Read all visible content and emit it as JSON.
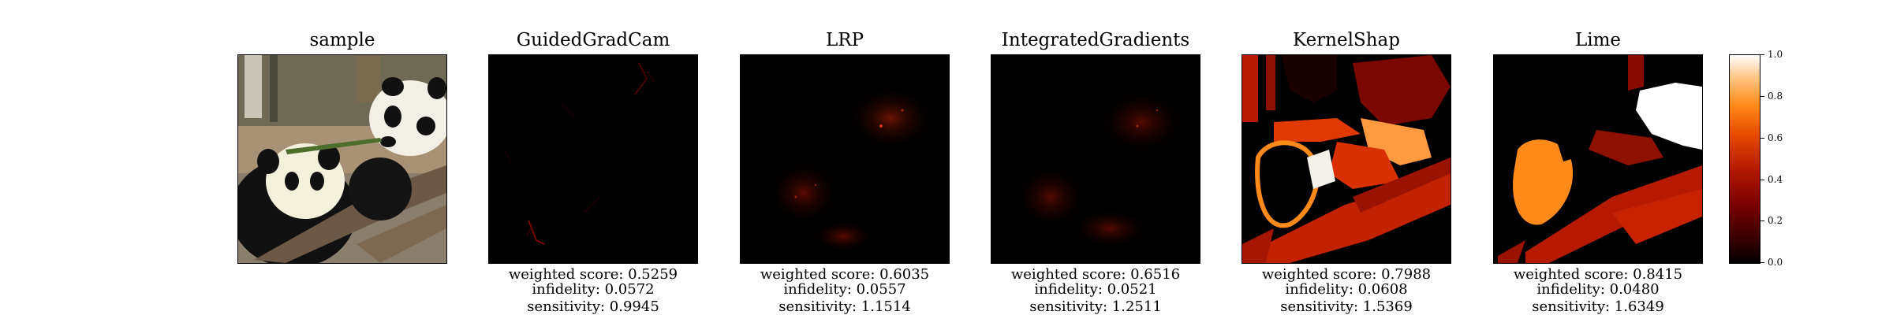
{
  "panels": [
    {
      "title": "sample",
      "metrics": null
    },
    {
      "title": "GuidedGradCam",
      "metrics": {
        "weighted": "weighted score: 0.5259",
        "infidelity": "infidelity: 0.0572",
        "sensitivity": "sensitivity: 0.9945"
      }
    },
    {
      "title": "LRP",
      "metrics": {
        "weighted": "weighted score: 0.6035",
        "infidelity": "infidelity: 0.0557",
        "sensitivity": "sensitivity: 1.1514"
      }
    },
    {
      "title": "IntegratedGradients",
      "metrics": {
        "weighted": "weighted score: 0.6516",
        "infidelity": "infidelity: 0.0521",
        "sensitivity": "sensitivity: 1.2511"
      }
    },
    {
      "title": "KernelShap",
      "metrics": {
        "weighted": "weighted score: 0.7988",
        "infidelity": "infidelity: 0.0608",
        "sensitivity": "sensitivity: 1.5369"
      }
    },
    {
      "title": "Lime",
      "metrics": {
        "weighted": "weighted score: 0.8415",
        "infidelity": "infidelity: 0.0480",
        "sensitivity": "sensitivity: 1.6349"
      }
    }
  ],
  "colorbar": {
    "ticks": [
      "0.0",
      "0.2",
      "0.4",
      "0.6",
      "0.8",
      "1.0"
    ],
    "colormap": [
      "#000000",
      "#7a0000",
      "#e64c00",
      "#ff8a1a",
      "#ffffff"
    ]
  }
}
